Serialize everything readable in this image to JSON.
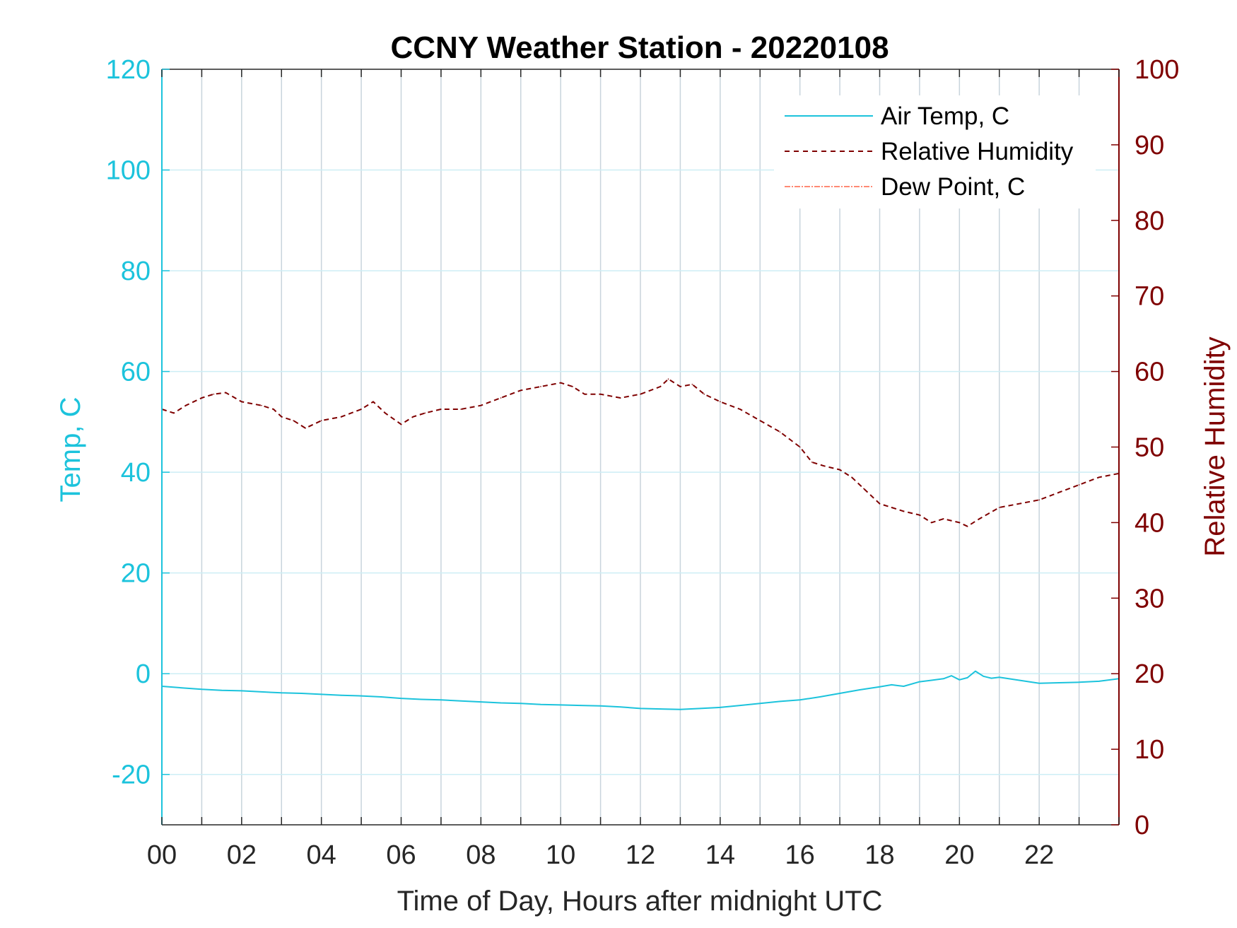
{
  "chart_data": {
    "type": "line",
    "title": "CCNY Weather Station - 20220108",
    "xlabel": "Time of Day, Hours after midnight UTC",
    "ylabel_left": "Temp, C",
    "ylabel_right": "Relative Humidity",
    "xlim": [
      0,
      24
    ],
    "ylim_left": [
      -30,
      120
    ],
    "ylim_right": [
      0,
      100
    ],
    "x_ticks": [
      0,
      2,
      4,
      6,
      8,
      10,
      12,
      14,
      16,
      18,
      20,
      22
    ],
    "x_tick_labels": [
      "00",
      "02",
      "04",
      "06",
      "08",
      "10",
      "12",
      "14",
      "16",
      "18",
      "20",
      "22"
    ],
    "y_ticks_left": [
      -20,
      0,
      20,
      40,
      60,
      80,
      100,
      120
    ],
    "y_tick_labels_left": [
      "-20",
      "0",
      "20",
      "40",
      "60",
      "80",
      "100",
      "120"
    ],
    "y_ticks_right": [
      0,
      10,
      20,
      30,
      40,
      50,
      60,
      70,
      80,
      90,
      100
    ],
    "y_tick_labels_right": [
      "0",
      "10",
      "20",
      "30",
      "40",
      "50",
      "60",
      "70",
      "80",
      "90",
      "100"
    ],
    "grid": true,
    "legend_position": "top-right",
    "colors": {
      "air_temp": "#1cc3dc",
      "relative_humidity": "#7f0000",
      "dew_point": "#ff6347",
      "vertical_grid": "#c8d4dc",
      "horizontal_grid": "#cdeef5"
    },
    "series": [
      {
        "name": "Air Temp, C",
        "axis": "left",
        "style": "solid",
        "x": [
          0,
          0.5,
          1,
          1.5,
          2,
          2.5,
          3,
          3.5,
          4,
          4.5,
          5,
          5.5,
          6,
          6.5,
          7,
          7.5,
          8,
          8.5,
          9,
          9.5,
          10,
          10.5,
          11,
          11.5,
          12,
          12.5,
          13,
          13.5,
          14,
          14.5,
          15,
          15.5,
          16,
          16.5,
          17,
          17.5,
          18,
          18.3,
          18.6,
          19,
          19.3,
          19.6,
          19.8,
          20,
          20.2,
          20.4,
          20.6,
          20.8,
          21,
          21.5,
          22,
          22.5,
          23,
          23.5,
          24
        ],
        "values": [
          -2.5,
          -2.8,
          -3.1,
          -3.3,
          -3.4,
          -3.6,
          -3.8,
          -3.9,
          -4.1,
          -4.3,
          -4.4,
          -4.6,
          -4.9,
          -5.1,
          -5.2,
          -5.4,
          -5.6,
          -5.8,
          -5.9,
          -6.1,
          -6.2,
          -6.3,
          -6.4,
          -6.6,
          -6.9,
          -7.0,
          -7.1,
          -6.9,
          -6.7,
          -6.3,
          -5.9,
          -5.5,
          -5.2,
          -4.6,
          -3.9,
          -3.2,
          -2.6,
          -2.2,
          -2.5,
          -1.6,
          -1.3,
          -1.0,
          -0.4,
          -1.2,
          -0.8,
          0.5,
          -0.5,
          -0.9,
          -0.7,
          -1.3,
          -1.9,
          -1.8,
          -1.7,
          -1.5,
          -1.0
        ]
      },
      {
        "name": "Relative Humidity",
        "axis": "right",
        "style": "dashed",
        "x": [
          0,
          0.3,
          0.6,
          1,
          1.3,
          1.6,
          2,
          2.5,
          2.8,
          3,
          3.3,
          3.6,
          4,
          4.5,
          5,
          5.3,
          5.6,
          6,
          6.3,
          6.6,
          7,
          7.5,
          8,
          8.5,
          9,
          9.5,
          10,
          10.3,
          10.6,
          11,
          11.5,
          12,
          12.5,
          12.7,
          13,
          13.3,
          13.6,
          14,
          14.5,
          15,
          15.5,
          16,
          16.3,
          16.6,
          17,
          17.3,
          17.6,
          18,
          18.3,
          18.6,
          19,
          19.3,
          19.6,
          20,
          20.2,
          20.5,
          21,
          21.5,
          22,
          22.5,
          23,
          23.5,
          24
        ],
        "values": [
          55.0,
          54.5,
          55.5,
          56.5,
          57.0,
          57.2,
          56.0,
          55.5,
          55.0,
          54.0,
          53.5,
          52.5,
          53.5,
          54.0,
          55.0,
          56.0,
          54.5,
          53.0,
          54.0,
          54.5,
          55.0,
          55.0,
          55.5,
          56.5,
          57.5,
          58.0,
          58.5,
          58.0,
          57.0,
          57.0,
          56.5,
          57.0,
          58.0,
          59.0,
          58.0,
          58.3,
          57.0,
          56.0,
          55.0,
          53.5,
          52.0,
          50.0,
          48.0,
          47.5,
          47.0,
          46.0,
          44.5,
          42.5,
          42.0,
          41.5,
          41.0,
          40.0,
          40.5,
          40.0,
          39.5,
          40.5,
          42.0,
          42.5,
          43.0,
          44.0,
          45.0,
          46.0,
          46.5
        ]
      },
      {
        "name": "Dew Point, C",
        "axis": "left",
        "style": "dash-dot",
        "x": [],
        "values": []
      }
    ]
  }
}
